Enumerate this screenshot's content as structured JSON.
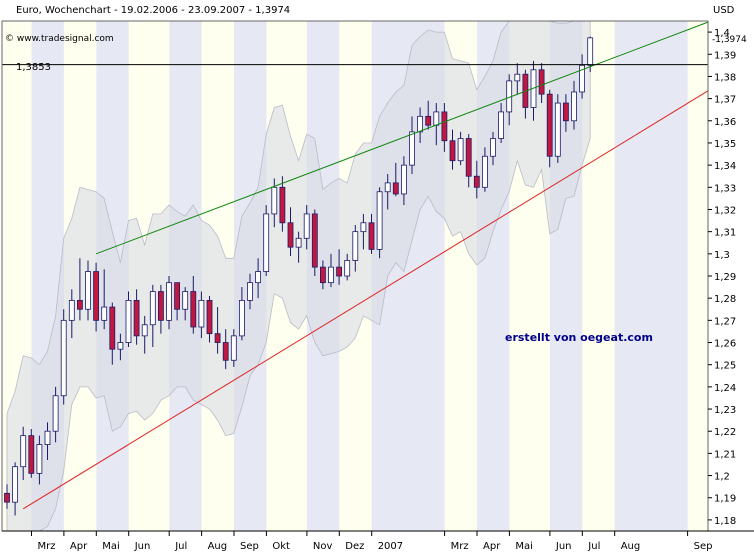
{
  "chart_data": {
    "type": "candlestick",
    "title": "Euro, Wochenchart - 19.02.2006 - 23.09.2007 - 1,3974",
    "source": "© www.tradesignal.com",
    "currency": "USD",
    "watermark": "erstellt von oegeat.com",
    "reference_line": {
      "label": "1,3853",
      "value": 1.3853
    },
    "last_value": {
      "label": "1,3974",
      "value": 1.3974
    },
    "ylim": [
      1.175,
      1.405
    ],
    "y_ticks": [
      "1,18",
      "1,19",
      "1,2",
      "1,21",
      "1,22",
      "1,23",
      "1,24",
      "1,25",
      "1,26",
      "1,27",
      "1,28",
      "1,29",
      "1,3",
      "1,31",
      "1,32",
      "1,33",
      "1,34",
      "1,35",
      "1,36",
      "1,37",
      "1,38",
      "1,39",
      "1,4"
    ],
    "x_ticks": [
      {
        "label": "Mrz",
        "week": 5
      },
      {
        "label": "Apr",
        "week": 9
      },
      {
        "label": "Mai",
        "week": 13
      },
      {
        "label": "Jun",
        "week": 17
      },
      {
        "label": "Jul",
        "week": 22
      },
      {
        "label": "Aug",
        "week": 26
      },
      {
        "label": "Sep",
        "week": 30
      },
      {
        "label": "Okt",
        "week": 34
      },
      {
        "label": "Nov",
        "week": 39
      },
      {
        "label": "Dez",
        "week": 43
      },
      {
        "label": "2007",
        "week": 47
      },
      {
        "label": "Mrz",
        "week": 56
      },
      {
        "label": "Apr",
        "week": 60
      },
      {
        "label": "Mai",
        "week": 64
      },
      {
        "label": "Jun",
        "week": 69
      },
      {
        "label": "Jul",
        "week": 73
      },
      {
        "label": "Aug",
        "week": 77
      },
      {
        "label": "Sep",
        "week": 86
      }
    ],
    "weeks_total": 90,
    "candles": [
      {
        "o": 1.192,
        "h": 1.196,
        "l": 1.185,
        "c": 1.188
      },
      {
        "o": 1.188,
        "h": 1.206,
        "l": 1.182,
        "c": 1.204
      },
      {
        "o": 1.204,
        "h": 1.222,
        "l": 1.198,
        "c": 1.218
      },
      {
        "o": 1.218,
        "h": 1.221,
        "l": 1.199,
        "c": 1.201
      },
      {
        "o": 1.201,
        "h": 1.218,
        "l": 1.196,
        "c": 1.214
      },
      {
        "o": 1.214,
        "h": 1.224,
        "l": 1.207,
        "c": 1.22
      },
      {
        "o": 1.22,
        "h": 1.24,
        "l": 1.215,
        "c": 1.236
      },
      {
        "o": 1.236,
        "h": 1.275,
        "l": 1.232,
        "c": 1.27
      },
      {
        "o": 1.27,
        "h": 1.284,
        "l": 1.262,
        "c": 1.279
      },
      {
        "o": 1.279,
        "h": 1.298,
        "l": 1.27,
        "c": 1.275
      },
      {
        "o": 1.275,
        "h": 1.297,
        "l": 1.27,
        "c": 1.292
      },
      {
        "o": 1.292,
        "h": 1.296,
        "l": 1.265,
        "c": 1.27
      },
      {
        "o": 1.27,
        "h": 1.293,
        "l": 1.266,
        "c": 1.276
      },
      {
        "o": 1.276,
        "h": 1.278,
        "l": 1.25,
        "c": 1.257
      },
      {
        "o": 1.257,
        "h": 1.264,
        "l": 1.252,
        "c": 1.26
      },
      {
        "o": 1.26,
        "h": 1.283,
        "l": 1.258,
        "c": 1.279
      },
      {
        "o": 1.279,
        "h": 1.284,
        "l": 1.259,
        "c": 1.263
      },
      {
        "o": 1.263,
        "h": 1.272,
        "l": 1.255,
        "c": 1.268
      },
      {
        "o": 1.268,
        "h": 1.286,
        "l": 1.258,
        "c": 1.283
      },
      {
        "o": 1.283,
        "h": 1.286,
        "l": 1.264,
        "c": 1.27
      },
      {
        "o": 1.27,
        "h": 1.29,
        "l": 1.266,
        "c": 1.287
      },
      {
        "o": 1.287,
        "h": 1.287,
        "l": 1.27,
        "c": 1.275
      },
      {
        "o": 1.275,
        "h": 1.285,
        "l": 1.27,
        "c": 1.283
      },
      {
        "o": 1.283,
        "h": 1.29,
        "l": 1.264,
        "c": 1.267
      },
      {
        "o": 1.267,
        "h": 1.283,
        "l": 1.262,
        "c": 1.279
      },
      {
        "o": 1.279,
        "h": 1.281,
        "l": 1.26,
        "c": 1.264
      },
      {
        "o": 1.264,
        "h": 1.276,
        "l": 1.255,
        "c": 1.26
      },
      {
        "o": 1.26,
        "h": 1.266,
        "l": 1.248,
        "c": 1.252
      },
      {
        "o": 1.252,
        "h": 1.266,
        "l": 1.249,
        "c": 1.263
      },
      {
        "o": 1.263,
        "h": 1.285,
        "l": 1.261,
        "c": 1.279
      },
      {
        "o": 1.279,
        "h": 1.291,
        "l": 1.275,
        "c": 1.287
      },
      {
        "o": 1.287,
        "h": 1.298,
        "l": 1.28,
        "c": 1.292
      },
      {
        "o": 1.292,
        "h": 1.322,
        "l": 1.29,
        "c": 1.318
      },
      {
        "o": 1.318,
        "h": 1.334,
        "l": 1.312,
        "c": 1.33
      },
      {
        "o": 1.33,
        "h": 1.335,
        "l": 1.31,
        "c": 1.314
      },
      {
        "o": 1.314,
        "h": 1.321,
        "l": 1.299,
        "c": 1.303
      },
      {
        "o": 1.303,
        "h": 1.31,
        "l": 1.296,
        "c": 1.307
      },
      {
        "o": 1.307,
        "h": 1.322,
        "l": 1.302,
        "c": 1.318
      },
      {
        "o": 1.318,
        "h": 1.32,
        "l": 1.29,
        "c": 1.294
      },
      {
        "o": 1.294,
        "h": 1.297,
        "l": 1.284,
        "c": 1.287
      },
      {
        "o": 1.287,
        "h": 1.3,
        "l": 1.285,
        "c": 1.294
      },
      {
        "o": 1.294,
        "h": 1.302,
        "l": 1.286,
        "c": 1.29
      },
      {
        "o": 1.29,
        "h": 1.3,
        "l": 1.288,
        "c": 1.297
      },
      {
        "o": 1.297,
        "h": 1.313,
        "l": 1.292,
        "c": 1.31
      },
      {
        "o": 1.31,
        "h": 1.318,
        "l": 1.302,
        "c": 1.314
      },
      {
        "o": 1.314,
        "h": 1.318,
        "l": 1.3,
        "c": 1.302
      },
      {
        "o": 1.302,
        "h": 1.33,
        "l": 1.298,
        "c": 1.328
      },
      {
        "o": 1.328,
        "h": 1.336,
        "l": 1.32,
        "c": 1.332
      },
      {
        "o": 1.332,
        "h": 1.341,
        "l": 1.326,
        "c": 1.327
      },
      {
        "o": 1.327,
        "h": 1.344,
        "l": 1.322,
        "c": 1.34
      },
      {
        "o": 1.34,
        "h": 1.362,
        "l": 1.336,
        "c": 1.355
      },
      {
        "o": 1.355,
        "h": 1.366,
        "l": 1.35,
        "c": 1.362
      },
      {
        "o": 1.362,
        "h": 1.369,
        "l": 1.356,
        "c": 1.358
      },
      {
        "o": 1.358,
        "h": 1.368,
        "l": 1.349,
        "c": 1.364
      },
      {
        "o": 1.364,
        "h": 1.368,
        "l": 1.346,
        "c": 1.351
      },
      {
        "o": 1.351,
        "h": 1.356,
        "l": 1.338,
        "c": 1.342
      },
      {
        "o": 1.342,
        "h": 1.355,
        "l": 1.34,
        "c": 1.352
      },
      {
        "o": 1.352,
        "h": 1.354,
        "l": 1.33,
        "c": 1.335
      },
      {
        "o": 1.335,
        "h": 1.342,
        "l": 1.325,
        "c": 1.33
      },
      {
        "o": 1.33,
        "h": 1.348,
        "l": 1.328,
        "c": 1.344
      },
      {
        "o": 1.344,
        "h": 1.355,
        "l": 1.34,
        "c": 1.352
      },
      {
        "o": 1.352,
        "h": 1.368,
        "l": 1.35,
        "c": 1.364
      },
      {
        "o": 1.364,
        "h": 1.381,
        "l": 1.358,
        "c": 1.378
      },
      {
        "o": 1.378,
        "h": 1.386,
        "l": 1.372,
        "c": 1.381
      },
      {
        "o": 1.381,
        "h": 1.383,
        "l": 1.361,
        "c": 1.366
      },
      {
        "o": 1.366,
        "h": 1.387,
        "l": 1.36,
        "c": 1.383
      },
      {
        "o": 1.383,
        "h": 1.386,
        "l": 1.368,
        "c": 1.372
      },
      {
        "o": 1.372,
        "h": 1.374,
        "l": 1.339,
        "c": 1.344
      },
      {
        "o": 1.344,
        "h": 1.372,
        "l": 1.341,
        "c": 1.368
      },
      {
        "o": 1.368,
        "h": 1.372,
        "l": 1.355,
        "c": 1.36
      },
      {
        "o": 1.36,
        "h": 1.378,
        "l": 1.356,
        "c": 1.373
      },
      {
        "o": 1.373,
        "h": 1.39,
        "l": 1.37,
        "c": 1.385
      },
      {
        "o": 1.385,
        "h": 1.398,
        "l": 1.382,
        "c": 1.3974
      }
    ]
  }
}
